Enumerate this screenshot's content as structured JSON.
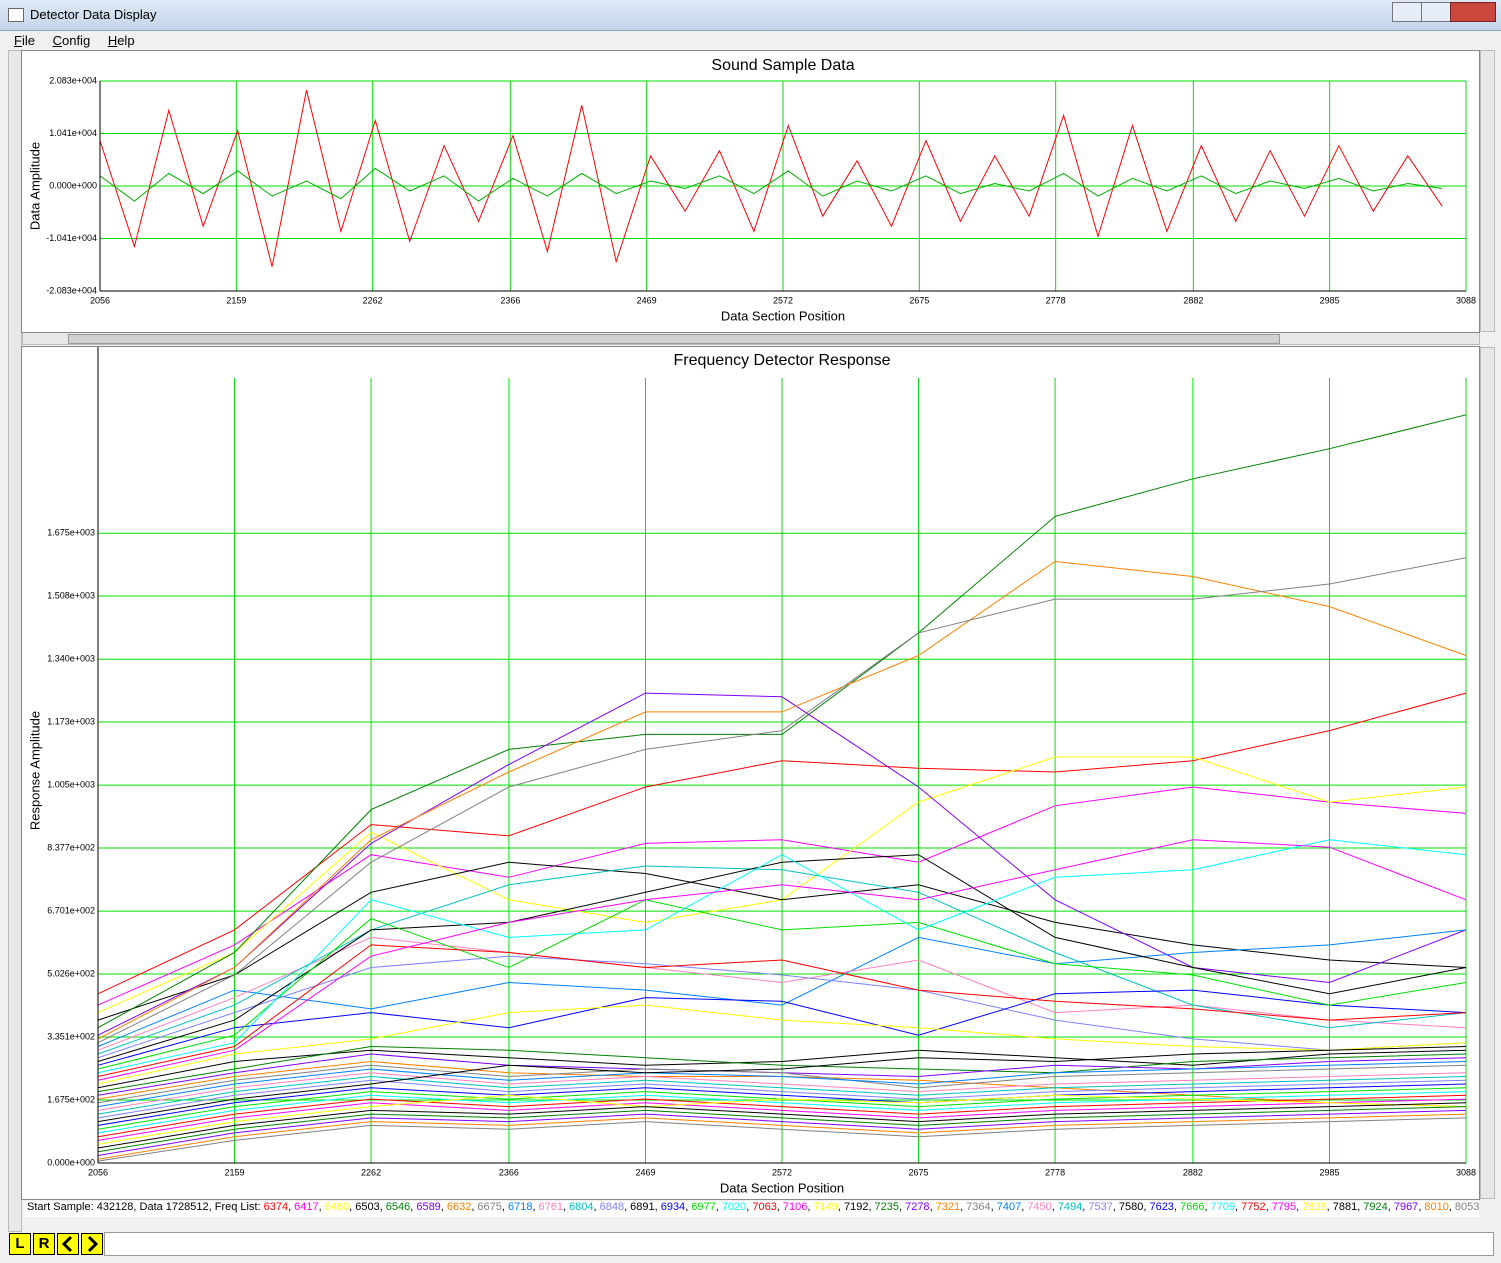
{
  "window": {
    "title": "Detector Data Display"
  },
  "menu": [
    "File",
    "Config",
    "Help"
  ],
  "chart_data": [
    {
      "type": "line",
      "title": "Sound Sample Data",
      "x_label": "Data Section Position",
      "y_label": "Data Amplitude",
      "x": [
        2056,
        2082,
        2108,
        2134,
        2160,
        2186,
        2212,
        2238,
        2264,
        2290,
        2316,
        2342,
        2368,
        2394,
        2420,
        2446,
        2472,
        2498,
        2524,
        2550,
        2576,
        2602,
        2628,
        2654,
        2680,
        2706,
        2732,
        2758,
        2784,
        2810,
        2836,
        2862,
        2888,
        2914,
        2940,
        2966,
        2992,
        3018,
        3044,
        3070
      ],
      "series": [
        {
          "name": "samples",
          "color": "#ff0000",
          "values": [
            9000,
            -12000,
            15000,
            -8000,
            11000,
            -16000,
            19000,
            -9000,
            13000,
            -11000,
            8000,
            -7000,
            10000,
            -13000,
            16000,
            -15000,
            6000,
            -5000,
            7000,
            -9000,
            12000,
            -6000,
            5000,
            -8000,
            9000,
            -7000,
            6000,
            -6000,
            14000,
            -10000,
            12000,
            -9000,
            8000,
            -7000,
            7000,
            -6000,
            8000,
            -5000,
            6000,
            -4000
          ]
        },
        {
          "name": "filtered",
          "color": "#00b000",
          "values": [
            2000,
            -3000,
            2500,
            -1500,
            3000,
            -2000,
            1000,
            -2500,
            3500,
            -1000,
            2000,
            -3000,
            1500,
            -2000,
            2500,
            -1500,
            1000,
            -500,
            2000,
            -1500,
            3000,
            -2000,
            1000,
            -1000,
            2000,
            -1500,
            500,
            -1000,
            2500,
            -2000,
            1500,
            -1000,
            2000,
            -1500,
            1000,
            -500,
            1500,
            -1000,
            500,
            -500
          ]
        }
      ],
      "xlim": [
        2056,
        3088
      ],
      "xticks": [
        2056,
        2159,
        2262,
        2366,
        2469,
        2572,
        2675,
        2778,
        2882,
        2985,
        3088
      ],
      "ylim": [
        -20830,
        20830
      ],
      "yticks": [
        {
          "value": -20830,
          "label": "-2.083e+004"
        },
        {
          "value": -10410,
          "label": "-1.041e+004"
        },
        {
          "value": 0,
          "label": "0.000e+000"
        },
        {
          "value": 10410,
          "label": "1.041e+004"
        },
        {
          "value": 20830,
          "label": "2.083e+004"
        }
      ],
      "grid": true,
      "grid_color": "#00e000"
    },
    {
      "type": "line",
      "title": "Frequency Detector Response",
      "x_label": "Data Section Position",
      "y_label": "Response Amplitude",
      "x": [
        2056,
        2159,
        2262,
        2366,
        2469,
        2572,
        2675,
        2778,
        2882,
        2985,
        3088
      ],
      "series": [
        {
          "name": "6374",
          "color": "#ff0000",
          "values": [
            450,
            620,
            900,
            870,
            1000,
            1070,
            1050,
            1040,
            1070,
            1150,
            1250
          ]
        },
        {
          "name": "6417",
          "color": "#ff00ff",
          "values": [
            420,
            580,
            820,
            760,
            850,
            860,
            800,
            950,
            1000,
            960,
            930
          ]
        },
        {
          "name": "6460",
          "color": "#ffff00",
          "values": [
            400,
            560,
            880,
            700,
            640,
            700,
            960,
            1080,
            1080,
            960,
            1000
          ]
        },
        {
          "name": "6503",
          "color": "#000000",
          "values": [
            380,
            500,
            720,
            800,
            770,
            700,
            740,
            640,
            580,
            540,
            520
          ]
        },
        {
          "name": "6546",
          "color": "#008000",
          "values": [
            360,
            560,
            940,
            1100,
            1140,
            1140,
            1410,
            1720,
            1820,
            1900,
            1990
          ]
        },
        {
          "name": "6589",
          "color": "#8000ff",
          "values": [
            340,
            520,
            850,
            1060,
            1250,
            1240,
            1000,
            700,
            520,
            480,
            620
          ]
        },
        {
          "name": "6632",
          "color": "#ff8000",
          "values": [
            330,
            520,
            860,
            1040,
            1200,
            1200,
            1350,
            1600,
            1560,
            1480,
            1350
          ]
        },
        {
          "name": "6675",
          "color": "#808080",
          "values": [
            320,
            500,
            800,
            1000,
            1100,
            1150,
            1410,
            1500,
            1500,
            1540,
            1610
          ]
        },
        {
          "name": "6718",
          "color": "#0080ff",
          "values": [
            310,
            460,
            410,
            480,
            460,
            420,
            600,
            530,
            560,
            580,
            620
          ]
        },
        {
          "name": "6761",
          "color": "#ff80c0",
          "values": [
            300,
            440,
            600,
            560,
            520,
            480,
            540,
            400,
            420,
            380,
            360
          ]
        },
        {
          "name": "6804",
          "color": "#00c0c0",
          "values": [
            290,
            420,
            620,
            740,
            790,
            780,
            720,
            560,
            420,
            360,
            400
          ]
        },
        {
          "name": "6848",
          "color": "#8080ff",
          "values": [
            280,
            400,
            520,
            550,
            530,
            500,
            460,
            380,
            330,
            300,
            320
          ]
        },
        {
          "name": "6891",
          "color": "#000000",
          "values": [
            270,
            380,
            620,
            640,
            720,
            800,
            820,
            600,
            520,
            450,
            520
          ]
        },
        {
          "name": "6934",
          "color": "#0000ff",
          "values": [
            260,
            360,
            400,
            360,
            440,
            430,
            340,
            450,
            460,
            420,
            400
          ]
        },
        {
          "name": "6977",
          "color": "#00e000",
          "values": [
            250,
            340,
            650,
            520,
            700,
            620,
            640,
            530,
            500,
            420,
            480
          ]
        },
        {
          "name": "7020",
          "color": "#00ffff",
          "values": [
            240,
            320,
            700,
            600,
            620,
            820,
            620,
            760,
            780,
            860,
            820
          ]
        },
        {
          "name": "7063",
          "color": "#ff0000",
          "values": [
            230,
            310,
            580,
            560,
            520,
            540,
            460,
            430,
            410,
            380,
            400
          ]
        },
        {
          "name": "7106",
          "color": "#ff00ff",
          "values": [
            220,
            300,
            550,
            640,
            700,
            740,
            700,
            780,
            860,
            840,
            700
          ]
        },
        {
          "name": "7149",
          "color": "#ffff00",
          "values": [
            210,
            290,
            330,
            400,
            420,
            380,
            360,
            330,
            310,
            300,
            320
          ]
        },
        {
          "name": "7192",
          "color": "#000000",
          "values": [
            200,
            270,
            300,
            280,
            260,
            270,
            300,
            280,
            260,
            290,
            300
          ]
        },
        {
          "name": "7235",
          "color": "#008000",
          "values": [
            190,
            250,
            310,
            300,
            280,
            260,
            250,
            240,
            270,
            280,
            290
          ]
        },
        {
          "name": "7278",
          "color": "#8000ff",
          "values": [
            180,
            240,
            290,
            260,
            250,
            240,
            230,
            260,
            250,
            270,
            280
          ]
        },
        {
          "name": "7321",
          "color": "#ff8000",
          "values": [
            170,
            230,
            270,
            240,
            230,
            230,
            220,
            200,
            180,
            160,
            150
          ]
        },
        {
          "name": "7364",
          "color": "#808080",
          "values": [
            160,
            220,
            260,
            230,
            250,
            240,
            200,
            230,
            240,
            250,
            260
          ]
        },
        {
          "name": "7407",
          "color": "#0080ff",
          "values": [
            150,
            210,
            250,
            220,
            240,
            230,
            210,
            240,
            250,
            260,
            270
          ]
        },
        {
          "name": "7450",
          "color": "#ff80c0",
          "values": [
            140,
            200,
            240,
            210,
            230,
            210,
            190,
            210,
            220,
            230,
            240
          ]
        },
        {
          "name": "7494",
          "color": "#00c0c0",
          "values": [
            130,
            190,
            230,
            200,
            220,
            200,
            180,
            200,
            210,
            220,
            230
          ]
        },
        {
          "name": "7537",
          "color": "#8080ff",
          "values": [
            120,
            180,
            220,
            190,
            210,
            190,
            170,
            190,
            200,
            210,
            220
          ]
        },
        {
          "name": "7580",
          "color": "#000000",
          "values": [
            110,
            170,
            210,
            260,
            240,
            250,
            280,
            270,
            290,
            300,
            310
          ]
        },
        {
          "name": "7623",
          "color": "#0000ff",
          "values": [
            100,
            160,
            200,
            180,
            200,
            180,
            160,
            180,
            190,
            200,
            210
          ]
        },
        {
          "name": "7666",
          "color": "#00e000",
          "values": [
            90,
            150,
            190,
            170,
            190,
            170,
            150,
            170,
            180,
            190,
            200
          ]
        },
        {
          "name": "7709",
          "color": "#00ffff",
          "values": [
            80,
            140,
            180,
            160,
            180,
            160,
            140,
            160,
            170,
            180,
            190
          ]
        },
        {
          "name": "7752",
          "color": "#ff0000",
          "values": [
            70,
            130,
            170,
            150,
            170,
            150,
            130,
            150,
            160,
            170,
            180
          ]
        },
        {
          "name": "7795",
          "color": "#ff00ff",
          "values": [
            60,
            120,
            160,
            140,
            160,
            140,
            120,
            140,
            150,
            160,
            170
          ]
        },
        {
          "name": "7838",
          "color": "#ffff00",
          "values": [
            50,
            110,
            150,
            180,
            150,
            170,
            160,
            180,
            170,
            160,
            150
          ]
        },
        {
          "name": "7881",
          "color": "#000000",
          "values": [
            40,
            100,
            140,
            130,
            150,
            130,
            110,
            130,
            140,
            150,
            160
          ]
        },
        {
          "name": "7924",
          "color": "#008000",
          "values": [
            30,
            90,
            130,
            120,
            140,
            120,
            100,
            120,
            130,
            140,
            150
          ]
        },
        {
          "name": "7967",
          "color": "#8000ff",
          "values": [
            20,
            80,
            120,
            110,
            130,
            110,
            90,
            110,
            120,
            130,
            140
          ]
        },
        {
          "name": "8010",
          "color": "#ff8000",
          "values": [
            10,
            70,
            110,
            100,
            120,
            100,
            80,
            100,
            110,
            120,
            130
          ]
        },
        {
          "name": "8053",
          "color": "#808080",
          "values": [
            5,
            60,
            100,
            90,
            110,
            90,
            70,
            90,
            100,
            110,
            120
          ]
        }
      ],
      "xlim": [
        2056,
        3088
      ],
      "xticks": [
        2056,
        2159,
        2262,
        2366,
        2469,
        2572,
        2675,
        2778,
        2882,
        2985,
        3088
      ],
      "ylim": [
        0,
        2088
      ],
      "yticks": [
        {
          "value": 0,
          "label": "0.000e+000"
        },
        {
          "value": 167.5,
          "label": "1.675e+002"
        },
        {
          "value": 335.1,
          "label": "3.351e+002"
        },
        {
          "value": 502.6,
          "label": "5.026e+002"
        },
        {
          "value": 670.1,
          "label": "6.701e+002"
        },
        {
          "value": 837.7,
          "label": "8.377e+002"
        },
        {
          "value": 1005,
          "label": "1.005e+003"
        },
        {
          "value": 1173,
          "label": "1.173e+003"
        },
        {
          "value": 1340,
          "label": "1.340e+003"
        },
        {
          "value": 1508,
          "label": "1.508e+003"
        },
        {
          "value": 1675,
          "label": "1.675e+003"
        }
      ],
      "grid": true,
      "grid_color": "#00e000"
    }
  ],
  "status": {
    "text": "Start Sample: 432128, Data 1728512, Freq List:"
  },
  "toolbar": [
    "L",
    "R"
  ]
}
